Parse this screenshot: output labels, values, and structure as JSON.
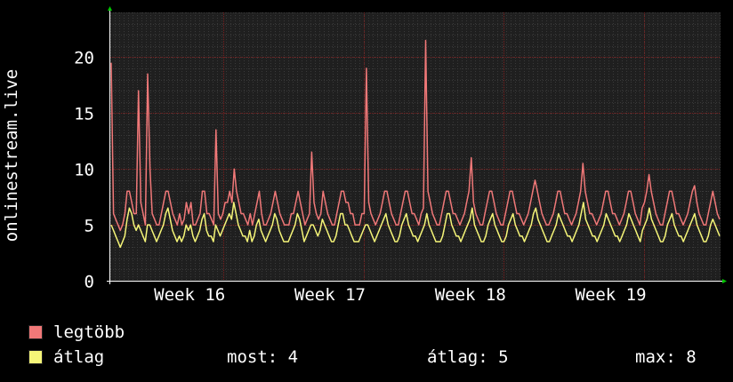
{
  "colors": {
    "background": "#000000",
    "plot_bg": "#1f1f1f",
    "grid_major": "#7a1f1f",
    "grid_minor": "#3a3a3a",
    "max_series": "#f07878",
    "avg_series": "#f5f578",
    "axis_arrow": "#00c800"
  },
  "legend": {
    "max_label": "legtöbb",
    "avg_label": "átlag",
    "now_text": "most: 4",
    "avg_text": "átlag: 5",
    "max_text": "max: 8"
  },
  "chart_data": {
    "type": "line",
    "ylabel": "onlinestream.live",
    "ylim": [
      0,
      24
    ],
    "yticks": [
      "0",
      "5",
      "10",
      "15",
      "20"
    ],
    "xticks": [
      "Week 16",
      "Week 17",
      "Week 18",
      "Week 19"
    ],
    "grid": true,
    "legend_placement": "bottom-left",
    "series": [
      {
        "name": "legtöbb",
        "color": "#f07878",
        "values": [
          19.5,
          6,
          5.5,
          5,
          4.5,
          5,
          6,
          8,
          8,
          7,
          6,
          6,
          17,
          7,
          6,
          5,
          18.5,
          10,
          6,
          5.5,
          5,
          5,
          6,
          7,
          8,
          8,
          7,
          6,
          5.5,
          5,
          6,
          5,
          5.5,
          7,
          6,
          7,
          5,
          5,
          5.5,
          6,
          8,
          8,
          6,
          6,
          5.5,
          5,
          13.5,
          6,
          5.5,
          6,
          7,
          7,
          8,
          7,
          10,
          8,
          7,
          6,
          6,
          5.5,
          5,
          6,
          5,
          6,
          7,
          8,
          6,
          5,
          5,
          5.5,
          6,
          7,
          8,
          7,
          6,
          5.5,
          5,
          5,
          5,
          6,
          6,
          7,
          8,
          7,
          6,
          5,
          5.5,
          6,
          11.5,
          7,
          6,
          5.5,
          6,
          8,
          7,
          6,
          5.5,
          5,
          5,
          6,
          7,
          8,
          8,
          7,
          7,
          6,
          6,
          5,
          5,
          5,
          6,
          6,
          19,
          7,
          6,
          5.5,
          5,
          5.5,
          6,
          7,
          8,
          8,
          7,
          6,
          5.5,
          5,
          5,
          6,
          7,
          8,
          8,
          7,
          6,
          6,
          5.5,
          5,
          6,
          6.5,
          21.5,
          8,
          7,
          6,
          5.5,
          5,
          5,
          6,
          7,
          8,
          8,
          7,
          6,
          6,
          5.5,
          5,
          5.5,
          6,
          7,
          8,
          11,
          7,
          6,
          5.5,
          5,
          5,
          6,
          7,
          8,
          8,
          7,
          6,
          5.5,
          5,
          5,
          6,
          7,
          8,
          8,
          7,
          6,
          6,
          5.5,
          5,
          5.5,
          6,
          7,
          8,
          9,
          8,
          7,
          6,
          5.5,
          5,
          5,
          5.5,
          6,
          7,
          8,
          8,
          7,
          6,
          6,
          5.5,
          5,
          5.5,
          6,
          7,
          8,
          10.5,
          8,
          7,
          6,
          6,
          5.5,
          5,
          5.5,
          6,
          7,
          8,
          8,
          7,
          6,
          6,
          5.5,
          5,
          5.5,
          6,
          7,
          8,
          8,
          7,
          6,
          5.5,
          5,
          6.5,
          7,
          8,
          9.5,
          8,
          7,
          6,
          5.5,
          5,
          5,
          6,
          7,
          8,
          8,
          7,
          6,
          6,
          5.5,
          5,
          5.5,
          6,
          7,
          8,
          8.5,
          7,
          6,
          5.5,
          5,
          5,
          6,
          7,
          8,
          7,
          6,
          5.5
        ]
      },
      {
        "name": "átlag",
        "color": "#f5f578",
        "values": [
          5,
          4.5,
          4,
          3.5,
          3,
          3.5,
          4,
          5.5,
          6.5,
          6,
          5,
          4.5,
          5,
          4.5,
          4,
          3.5,
          5,
          5,
          4.5,
          4,
          3.5,
          4,
          4.5,
          5,
          6,
          6.5,
          5.5,
          4.5,
          4,
          3.5,
          4,
          3.5,
          4,
          5,
          4.5,
          5,
          4,
          3.5,
          4,
          4.5,
          5.5,
          6,
          4.5,
          4,
          4,
          3.5,
          5,
          4.5,
          4,
          4.5,
          5,
          5.5,
          6,
          5.5,
          7,
          6,
          5,
          4.5,
          4,
          4,
          3.5,
          4.5,
          3.5,
          4,
          5,
          5.5,
          4.5,
          4,
          3.5,
          4,
          4.5,
          5,
          6,
          5.5,
          4.5,
          4,
          3.5,
          3.5,
          3.5,
          4,
          4.5,
          5,
          6,
          5.5,
          4.5,
          3.5,
          4,
          4.5,
          5,
          5,
          4.5,
          4,
          4.5,
          5.5,
          5,
          4.5,
          4,
          3.5,
          3.5,
          4,
          5,
          6,
          6,
          5,
          5,
          4.5,
          4,
          3.5,
          3.5,
          3.5,
          4,
          4.5,
          5,
          5,
          4.5,
          4,
          3.5,
          4,
          4.5,
          5,
          5.5,
          6,
          5,
          4.5,
          4,
          3.5,
          3.5,
          4,
          5,
          5.5,
          6,
          5,
          4.5,
          4,
          4,
          3.5,
          4,
          4.5,
          5,
          6,
          5,
          4.5,
          4,
          3.5,
          3.5,
          3.5,
          4,
          5,
          6,
          6,
          5,
          4.5,
          4,
          4,
          3.5,
          4,
          4.5,
          5,
          5.5,
          6.5,
          5,
          4.5,
          4,
          3.5,
          3.5,
          4,
          5,
          5.5,
          6,
          5,
          4.5,
          4,
          3.5,
          3.5,
          4,
          5,
          5.5,
          6,
          5,
          4.5,
          4,
          4,
          3.5,
          4,
          4.5,
          5,
          6,
          6.5,
          5.5,
          5,
          4.5,
          4,
          3.5,
          3.5,
          4,
          4.5,
          5,
          6,
          5.5,
          5,
          4.5,
          4,
          4,
          3.5,
          4,
          4.5,
          5,
          6,
          7,
          5.5,
          5,
          4.5,
          4,
          4,
          3.5,
          4,
          4.5,
          5,
          6,
          5.5,
          5,
          4.5,
          4,
          4,
          3.5,
          4,
          4.5,
          5,
          6,
          5.5,
          5,
          4.5,
          4,
          3.5,
          4.5,
          5,
          5.5,
          6.5,
          5.5,
          5,
          4.5,
          4,
          3.5,
          3.5,
          4,
          5,
          5.5,
          6,
          5,
          4.5,
          4,
          4,
          3.5,
          4,
          4.5,
          5,
          5.5,
          6,
          5,
          4.5,
          4,
          3.5,
          3.5,
          4,
          5,
          5.5,
          5,
          4.5,
          4
        ]
      }
    ],
    "week_boundaries_fraction": [
      0.185,
      0.415,
      0.645,
      0.875
    ],
    "week_label_fraction": [
      0.13,
      0.36,
      0.59,
      0.82
    ]
  }
}
